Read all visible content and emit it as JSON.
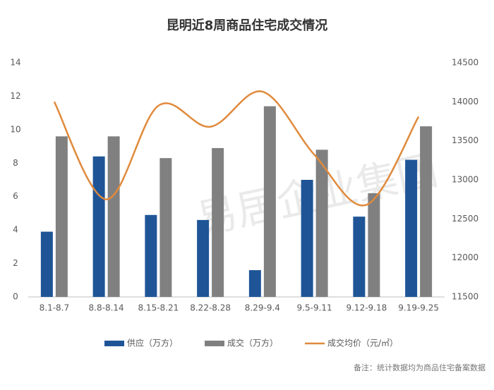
{
  "chart_data": {
    "type": "combo",
    "title": "昆明近8周商品住宅成交情况",
    "categories": [
      "8.1-8.7",
      "8.8-8.14",
      "8.15-8.21",
      "8.22-8.28",
      "8.29-9.4",
      "9.5-9.11",
      "9.12-9.18",
      "9.19-9.25"
    ],
    "series": [
      {
        "name": "供应（万方）",
        "type": "bar",
        "color": "#1f5597",
        "values": [
          3.9,
          8.4,
          4.9,
          4.6,
          1.6,
          7.0,
          4.8,
          8.2
        ]
      },
      {
        "name": "成交（万方）",
        "type": "bar",
        "color": "#808080",
        "values": [
          9.6,
          9.6,
          8.3,
          8.9,
          11.4,
          8.8,
          6.2,
          10.2
        ]
      },
      {
        "name": "成交均价（元/㎡）",
        "type": "line",
        "axis": "y2",
        "color": "#e08a3c",
        "values": [
          14000,
          12750,
          13950,
          13680,
          14130,
          13320,
          12680,
          13810
        ]
      }
    ],
    "ylim": [
      0,
      14
    ],
    "yticks": [
      0,
      2,
      4,
      6,
      8,
      10,
      12,
      14
    ],
    "y2lim": [
      11500,
      14500
    ],
    "y2ticks": [
      11500,
      12000,
      12500,
      13000,
      13500,
      14000,
      14500
    ],
    "grid": false,
    "legend": "bottom",
    "note": "备注：统计数据均为商品住宅备案数据",
    "watermark": "易居企业集团"
  }
}
